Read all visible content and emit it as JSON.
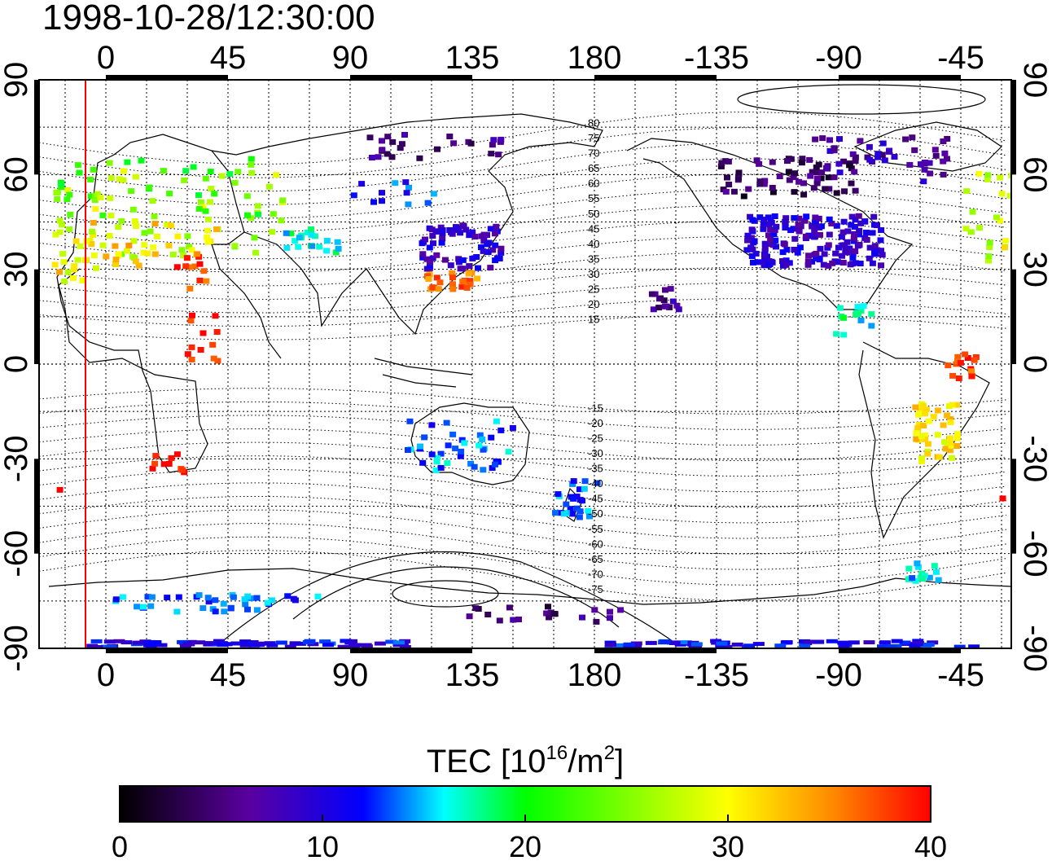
{
  "title": "1998-10-28/12:30:00",
  "map": {
    "lon_labels_top": [
      "0",
      "45",
      "90",
      "135",
      "180",
      "-135",
      "-90",
      "-45"
    ],
    "lon_labels_bottom": [
      "0",
      "45",
      "90",
      "135",
      "180",
      "-135",
      "-90",
      "-45"
    ],
    "lat_labels_left": [
      "90",
      "60",
      "30",
      "0",
      "-30",
      "-60",
      "-90"
    ],
    "lat_labels_right": [
      "90",
      "60",
      "30",
      "0",
      "-30",
      "-60",
      "-90"
    ],
    "magnetic_latitude_labels": [
      "80",
      "75",
      "70",
      "65",
      "60",
      "55",
      "50",
      "45",
      "40",
      "35",
      "30",
      "25",
      "20",
      "15",
      "-15",
      "-20",
      "-25",
      "-30",
      "-35",
      "-40",
      "-45",
      "-50",
      "-55",
      "-60",
      "-65",
      "-70",
      "-75"
    ],
    "meridian_line_color": "#ff0000"
  },
  "colorbar": {
    "label_main": "TEC  [10",
    "label_exp1": "16",
    "label_mid": "/m",
    "label_exp2": "2",
    "label_end": "]",
    "ticks": [
      "0",
      "10",
      "20",
      "30",
      "40"
    ],
    "min": 0,
    "max": 40
  },
  "colors": {
    "scale": [
      "#000000",
      "#5a00a0",
      "#0000ff",
      "#00ffff",
      "#00ff00",
      "#ffff00",
      "#ff0000"
    ]
  },
  "clusters": [
    {
      "lon": 10,
      "lat": 48,
      "tec": 27,
      "w": 55,
      "h": 15,
      "n": 90
    },
    {
      "lon": 5,
      "lat": 38,
      "tec": 32,
      "w": 35,
      "h": 8,
      "n": 40
    },
    {
      "lon": 15,
      "lat": 58,
      "tec": 22,
      "w": 40,
      "h": 10,
      "n": 40
    },
    {
      "lon": -10,
      "lat": 40,
      "tec": 29,
      "w": 10,
      "h": 15,
      "n": 15
    },
    {
      "lon": 30,
      "lat": 30,
      "tec": 38,
      "w": 6,
      "h": 6,
      "n": 12
    },
    {
      "lon": 35,
      "lat": 10,
      "tec": 39,
      "w": 6,
      "h": 10,
      "n": 12
    },
    {
      "lon": 22,
      "lat": -30,
      "tec": 40,
      "w": 6,
      "h": 4,
      "n": 10
    },
    {
      "lon": -25,
      "lat": -40,
      "tec": 40,
      "w": 8,
      "h": 4,
      "n": 10
    },
    {
      "lon": 75,
      "lat": 40,
      "tec": 17,
      "w": 10,
      "h": 4,
      "n": 20
    },
    {
      "lon": 105,
      "lat": 55,
      "tec": 12,
      "w": 15,
      "h": 4,
      "n": 12
    },
    {
      "lon": 130,
      "lat": 38,
      "tec": 9,
      "w": 15,
      "h": 7,
      "n": 70
    },
    {
      "lon": 127,
      "lat": 27,
      "tec": 36,
      "w": 10,
      "h": 3,
      "n": 25
    },
    {
      "lon": 120,
      "lat": 70,
      "tec": 5,
      "w": 25,
      "h": 4,
      "n": 25
    },
    {
      "lon": 130,
      "lat": -25,
      "tec": 14,
      "w": 20,
      "h": 8,
      "n": 40
    },
    {
      "lon": 172,
      "lat": -42,
      "tec": 13,
      "w": 8,
      "h": 6,
      "n": 25
    },
    {
      "lon": -155,
      "lat": 22,
      "tec": 6,
      "w": 5,
      "h": 4,
      "n": 15
    },
    {
      "lon": -100,
      "lat": 40,
      "tec": 9,
      "w": 25,
      "h": 8,
      "n": 180
    },
    {
      "lon": -110,
      "lat": 60,
      "tec": 4,
      "w": 25,
      "h": 6,
      "n": 60
    },
    {
      "lon": -75,
      "lat": 65,
      "tec": 7,
      "w": 25,
      "h": 8,
      "n": 50
    },
    {
      "lon": -85,
      "lat": 15,
      "tec": 17,
      "w": 8,
      "h": 5,
      "n": 15
    },
    {
      "lon": -55,
      "lat": -20,
      "tec": 31,
      "w": 8,
      "h": 10,
      "n": 50
    },
    {
      "lon": -45,
      "lat": 0,
      "tec": 38,
      "w": 6,
      "h": 4,
      "n": 15
    },
    {
      "lon": -60,
      "lat": -65,
      "tec": 16,
      "w": 6,
      "h": 3,
      "n": 15
    },
    {
      "lon": 40,
      "lat": -75,
      "tec": 13,
      "w": 40,
      "h": 3,
      "n": 40
    },
    {
      "lon": 160,
      "lat": -78,
      "tec": 5,
      "w": 30,
      "h": 3,
      "n": 20
    },
    {
      "lon": 50,
      "lat": -88,
      "tec": 11,
      "w": 60,
      "h": 1,
      "n": 70
    },
    {
      "lon": -110,
      "lat": -88,
      "tec": 11,
      "w": 70,
      "h": 1,
      "n": 70
    }
  ]
}
